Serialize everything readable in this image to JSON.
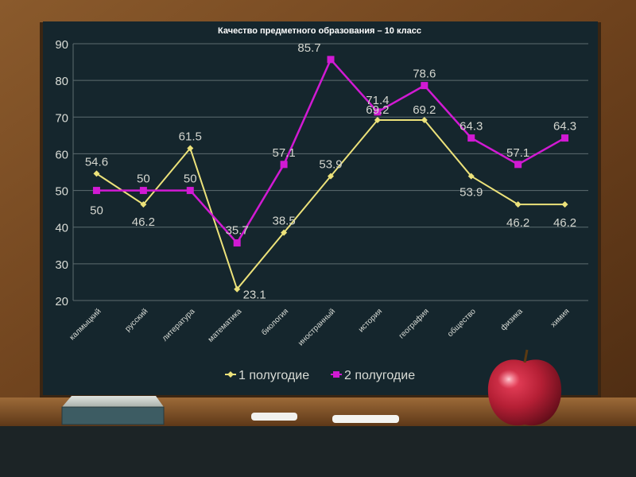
{
  "chart_data": {
    "type": "line",
    "title": "Качество предметного образования – 10 класс",
    "categories": [
      "калмыцкий",
      "русский",
      "литература",
      "математика",
      "биология",
      "иностранный",
      "история",
      "география",
      "общество",
      "физика",
      "химия"
    ],
    "series": [
      {
        "name": "1 полугодие",
        "color": "#ece27a",
        "marker": "diamond",
        "values": [
          54.6,
          46.2,
          61.5,
          23.1,
          38.5,
          53.9,
          69.2,
          69.2,
          53.9,
          46.2,
          46.2
        ],
        "labels": [
          "54.6",
          "46.2",
          "61.5",
          "23.1",
          "38.5",
          "53.9",
          "69.2",
          "69.2",
          "53.9",
          "46.2",
          "46.2"
        ]
      },
      {
        "name": "2 полугодие",
        "color": "#d11ad3",
        "marker": "square",
        "values": [
          50,
          50,
          50,
          35.7,
          57.1,
          85.7,
          71.4,
          78.6,
          64.3,
          57.1,
          64.3
        ],
        "labels": [
          "50",
          "50",
          "50",
          "35.7",
          "57.1",
          "85.7",
          "71.4",
          "78.6",
          "64.3",
          "57.1",
          "64.3"
        ]
      }
    ],
    "ylim": [
      20,
      90
    ],
    "yticks": [
      "20",
      "30",
      "40",
      "50",
      "60",
      "70",
      "80",
      "90"
    ],
    "ytick_values": [
      20,
      30,
      40,
      50,
      60,
      70,
      80,
      90
    ],
    "xlabel": "",
    "ylabel": "",
    "grid": "horizontal",
    "legend": "bottom"
  }
}
